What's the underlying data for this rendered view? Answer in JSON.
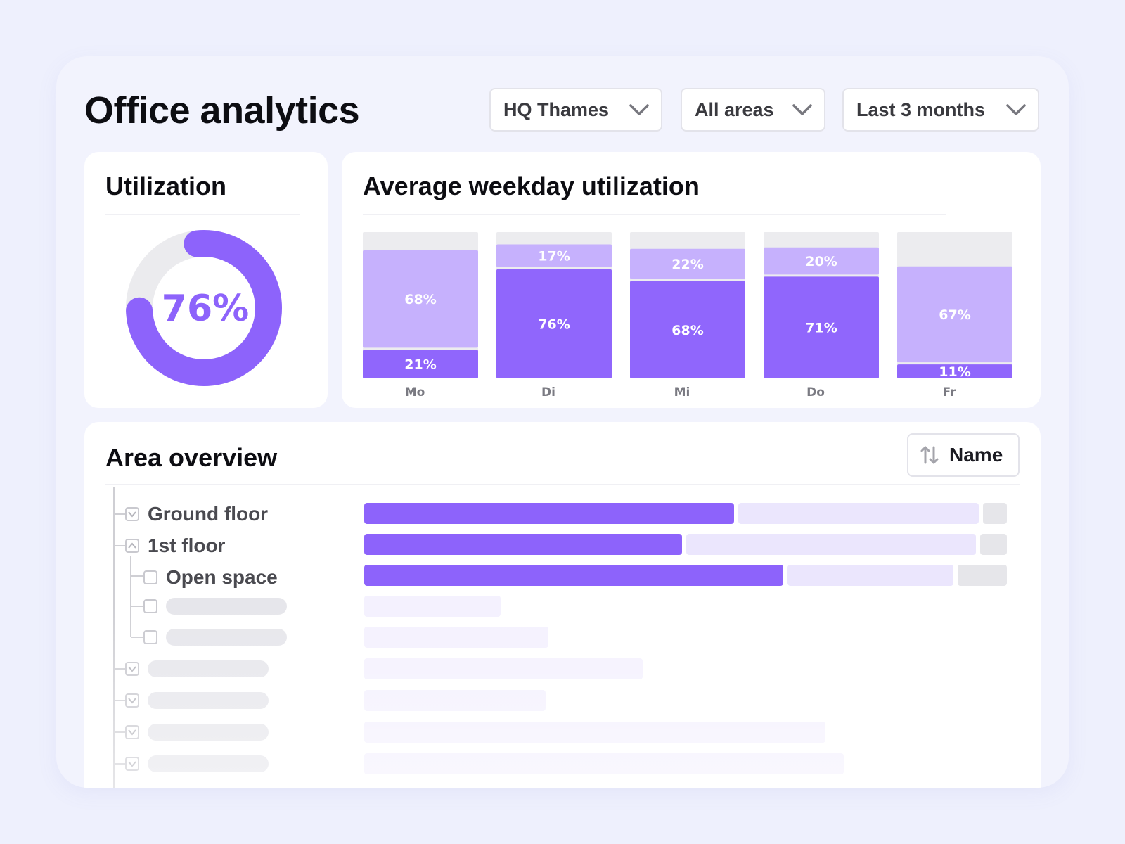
{
  "header": {
    "title": "Office analytics",
    "filters": [
      {
        "label": "HQ Thames"
      },
      {
        "label": "All areas"
      },
      {
        "label": "Last 3 months"
      }
    ]
  },
  "utilization": {
    "title": "Utilization",
    "value_label": "76%",
    "fraction": 0.76
  },
  "weekday": {
    "title": "Average weekday utilization"
  },
  "chart_data": {
    "type": "bar",
    "stacked": true,
    "categories": [
      "Mo",
      "Di",
      "Mi",
      "Do",
      "Fr"
    ],
    "series": [
      {
        "values": [
          21,
          76,
          68,
          71,
          11
        ],
        "color": "#9066fc"
      },
      {
        "values": [
          68,
          17,
          22,
          20,
          67
        ],
        "color": "#c6b1fd"
      }
    ],
    "labels": {
      "lower": [
        "21%",
        "76%",
        "68%",
        "71%",
        "11%"
      ],
      "upper": [
        "68%",
        "17%",
        "22%",
        "20%",
        "67%"
      ]
    },
    "remainder_color": "#ececef",
    "ylim": [
      0,
      100
    ]
  },
  "area_overview": {
    "title": "Area overview",
    "sort_label": "Name",
    "rows": [
      {
        "label": "Ground floor",
        "checkbox": "chevron-down-icon",
        "primary": 0.575,
        "secondary": 0.375
      },
      {
        "label": "1st floor",
        "checkbox": "chevron-up-icon",
        "primary": 0.495,
        "secondary": 0.45
      },
      {
        "label": "Open space",
        "checkbox": "empty",
        "primary": 0.652,
        "secondary": 0.258
      }
    ]
  },
  "colors": {
    "accent": "#8d63fb",
    "accent_light": "#c6b1fd",
    "track": "#ebebee"
  }
}
